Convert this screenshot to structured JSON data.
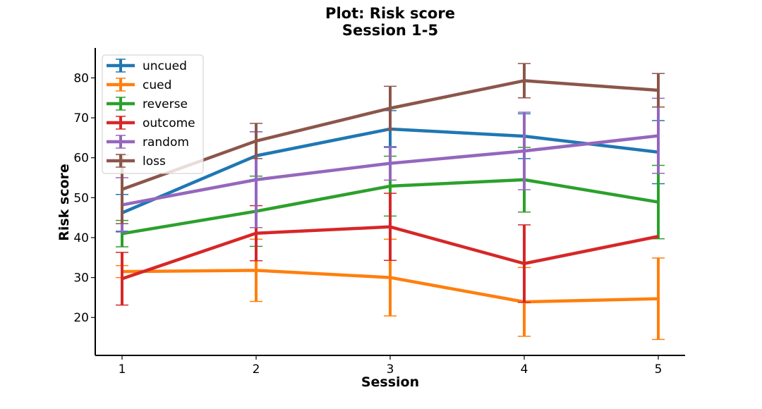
{
  "chart_data": {
    "type": "line",
    "title": "Plot: Risk score",
    "subtitle": "Session 1-5",
    "xlabel": "Session",
    "ylabel": "Risk score",
    "x": [
      1,
      2,
      3,
      4,
      5
    ],
    "xlim": [
      0.8,
      5.2
    ],
    "ylim": [
      10.5,
      87.5
    ],
    "yticks": [
      20,
      30,
      40,
      50,
      60,
      70,
      80
    ],
    "grid": false,
    "error_bars": true,
    "legend_position": "top-left",
    "series": [
      {
        "name": "uncued",
        "color": "#1f77b4",
        "values": [
          46.2,
          60.5,
          67.2,
          65.4,
          61.4
        ],
        "errors": [
          4.6,
          6.0,
          4.6,
          5.6,
          7.9
        ]
      },
      {
        "name": "cued",
        "color": "#ff7f0e",
        "values": [
          31.5,
          31.8,
          30.0,
          23.9,
          24.7
        ],
        "errors": [
          1.5,
          7.8,
          9.6,
          8.6,
          10.2
        ]
      },
      {
        "name": "reverse",
        "color": "#2ca02c",
        "values": [
          41.0,
          46.6,
          52.9,
          54.5,
          48.9
        ],
        "errors": [
          3.3,
          8.8,
          7.5,
          8.1,
          9.2
        ]
      },
      {
        "name": "outcome",
        "color": "#d62728",
        "values": [
          29.7,
          41.1,
          42.7,
          33.5,
          40.3
        ],
        "errors": [
          6.6,
          6.9,
          8.4,
          9.7,
          0.0
        ]
      },
      {
        "name": "random",
        "color": "#9467bd",
        "values": [
          48.2,
          54.5,
          58.6,
          61.7,
          65.5
        ],
        "errors": [
          6.8,
          12.0,
          4.2,
          9.7,
          9.4
        ]
      },
      {
        "name": "loss",
        "color": "#8c564b",
        "values": [
          52.1,
          64.2,
          72.4,
          79.3,
          76.9
        ],
        "errors": [
          8.6,
          4.4,
          5.5,
          4.3,
          4.2
        ]
      }
    ]
  }
}
